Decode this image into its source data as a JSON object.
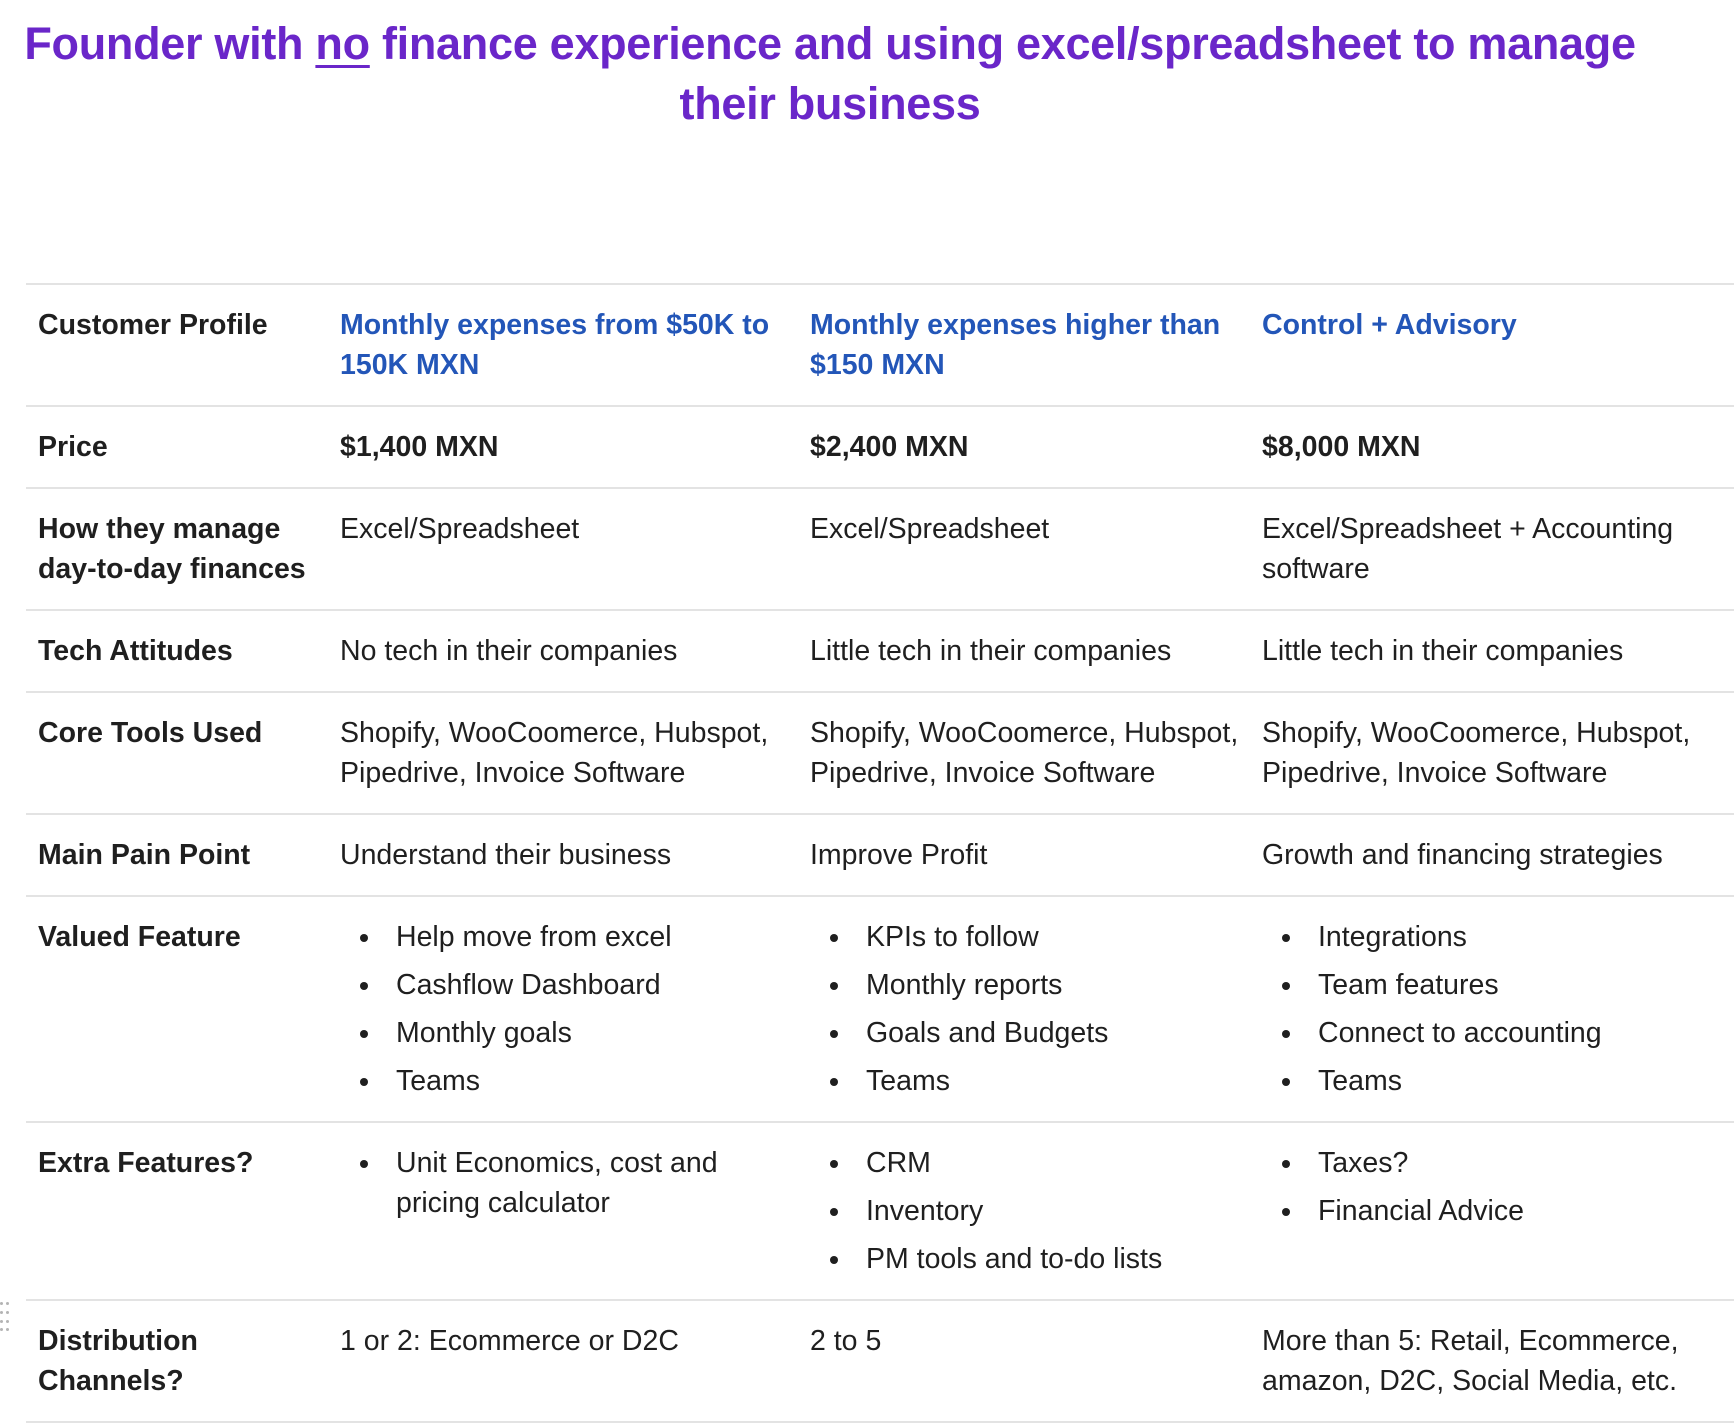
{
  "title": {
    "part1": "Founder with ",
    "underlined": "no",
    "part2": " finance experience and using excel/spreadsheet to manage their business"
  },
  "table": {
    "header": {
      "label": "Customer Profile",
      "col1": "Monthly expenses from $50K to 150K MXN",
      "col2": "Monthly expenses higher than $150 MXN",
      "col3": "Control + Advisory"
    },
    "price": {
      "label": "Price",
      "col1": "$1,400 MXN",
      "col2": "$2,400 MXN",
      "col3": "$8,000 MXN"
    },
    "manage": {
      "label": "How they manage day-to-day finances",
      "col1": "Excel/Spreadsheet",
      "col2": "Excel/Spreadsheet",
      "col3": "Excel/Spreadsheet + Accounting software"
    },
    "tech": {
      "label": "Tech Attitudes",
      "col1": "No tech in their companies",
      "col2": "Little tech in their companies",
      "col3": "Little tech in their companies"
    },
    "tools": {
      "label": "Core Tools Used",
      "col1": "Shopify, WooCoomerce, Hubspot, Pipedrive, Invoice Software",
      "col2": "Shopify, WooCoomerce, Hubspot, Pipedrive, Invoice Software",
      "col3": "Shopify, WooCoomerce, Hubspot, Pipedrive, Invoice Software"
    },
    "pain": {
      "label": "Main Pain Point",
      "col1": "Understand their business",
      "col2": "Improve Profit",
      "col3": "Growth and financing strategies"
    },
    "valued": {
      "label": "Valued Feature",
      "col1": [
        "Help move from excel",
        "Cashflow Dashboard",
        "Monthly goals",
        "Teams"
      ],
      "col2": [
        "KPIs to follow",
        "Monthly reports",
        "Goals and Budgets",
        "Teams"
      ],
      "col3": [
        "Integrations",
        "Team features",
        "Connect to accounting",
        "Teams"
      ]
    },
    "extra": {
      "label": "Extra Features?",
      "col1": [
        "Unit Economics, cost and pricing calculator"
      ],
      "col2": [
        "CRM",
        "Inventory",
        "PM tools and to-do lists"
      ],
      "col3": [
        "Taxes?",
        "Financial Advice"
      ]
    },
    "distribution": {
      "label": "Distribution Channels?",
      "col1": "1 or 2: Ecommerce or D2C",
      "col2": "2 to 5",
      "col3": "More than 5: Retail, Ecommerce, amazon, D2C, Social Media, etc."
    }
  }
}
